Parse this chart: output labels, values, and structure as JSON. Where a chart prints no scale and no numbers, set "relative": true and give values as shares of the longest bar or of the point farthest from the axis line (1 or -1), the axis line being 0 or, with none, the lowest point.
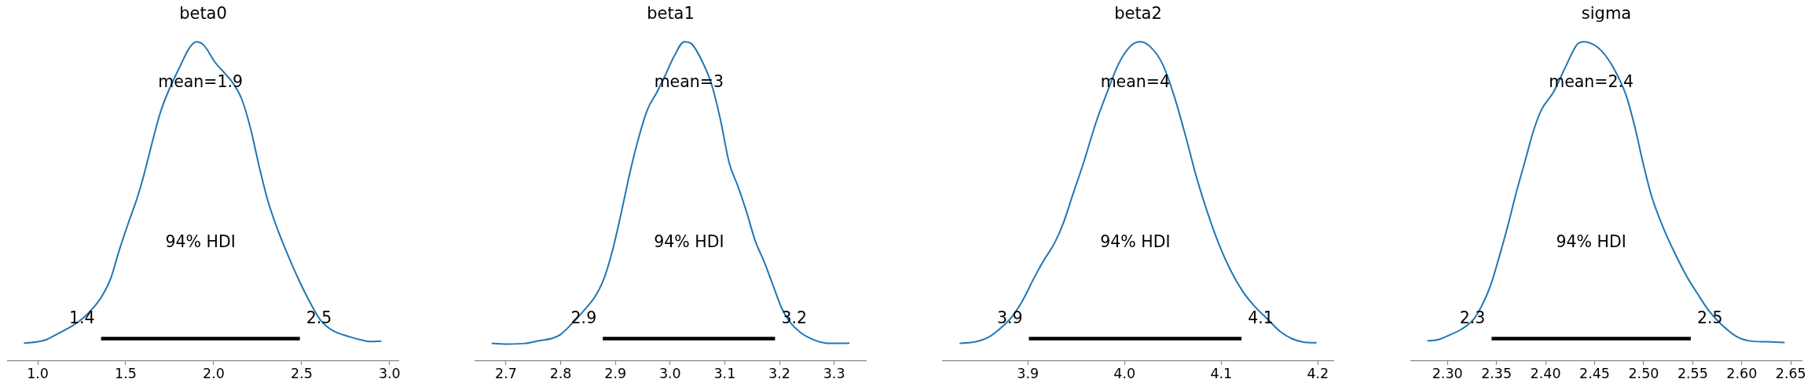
{
  "chart_data": [
    {
      "type": "line",
      "title": "beta0",
      "relative": true,
      "xlim": [
        0.83,
        3.05
      ],
      "xticks": [
        {
          "value": 1,
          "label": "1.0"
        },
        1.5,
        {
          "value": 2,
          "label": "2.0"
        },
        2.5,
        {
          "value": 3,
          "label": "3.0"
        }
      ],
      "series": [
        {
          "color": "#1f77b4",
          "x": [
            0.925,
            1.0,
            1.05,
            1.116,
            1.199,
            1.257,
            1.315,
            1.364,
            1.414,
            1.464,
            1.513,
            1.563,
            1.604,
            1.646,
            1.695,
            1.745,
            1.811,
            1.861,
            1.902,
            1.944,
            2.01,
            2.06,
            2.109,
            2.159,
            2.209,
            2.258,
            2.308,
            2.358,
            2.424,
            2.49,
            2.556,
            2.606,
            2.672,
            2.772,
            2.854,
            2.887,
            2.95
          ],
          "values": [
            0.056,
            0.06,
            0.067,
            0.086,
            0.111,
            0.134,
            0.166,
            0.202,
            0.257,
            0.348,
            0.429,
            0.507,
            0.584,
            0.675,
            0.775,
            0.848,
            0.925,
            0.98,
            1.0,
            0.989,
            0.934,
            0.903,
            0.871,
            0.821,
            0.73,
            0.611,
            0.502,
            0.42,
            0.329,
            0.247,
            0.175,
            0.129,
            0.097,
            0.076,
            0.064,
            0.061,
            0.062
          ]
        },
        {
          "color": "#000000",
          "x": [
            1.36,
            2.49
          ],
          "values": [
            0.07,
            0.07
          ]
        }
      ],
      "annotations": [
        "mean=1.9",
        "94% HDI",
        "1.4",
        "2.5"
      ]
    },
    {
      "type": "line",
      "title": "beta1",
      "relative": true,
      "xlim": [
        2.644,
        3.358
      ],
      "xticks": [
        2.7,
        2.8,
        2.9,
        {
          "value": 3,
          "label": "3.0"
        },
        3.1,
        3.2,
        3.3
      ],
      "series": [
        {
          "color": "#1f77b4",
          "x": [
            2.675,
            2.703,
            2.735,
            2.762,
            2.783,
            2.799,
            2.82,
            2.842,
            2.863,
            2.879,
            2.895,
            2.911,
            2.927,
            2.943,
            2.959,
            2.975,
            2.991,
            3.007,
            3.026,
            3.039,
            3.06,
            3.076,
            3.092,
            3.108,
            3.124,
            3.14,
            3.156,
            3.172,
            3.188,
            3.204,
            3.22,
            3.241,
            3.263,
            3.284,
            3.3,
            3.327
          ],
          "values": [
            0.055,
            0.053,
            0.055,
            0.064,
            0.07,
            0.082,
            0.116,
            0.157,
            0.202,
            0.257,
            0.348,
            0.466,
            0.593,
            0.702,
            0.789,
            0.839,
            0.894,
            0.953,
            1.0,
            0.994,
            0.934,
            0.866,
            0.757,
            0.621,
            0.548,
            0.466,
            0.375,
            0.311,
            0.238,
            0.166,
            0.12,
            0.086,
            0.066,
            0.056,
            0.055,
            0.056
          ]
        },
        {
          "color": "#000000",
          "x": [
            2.877,
            3.192
          ],
          "values": [
            0.07,
            0.07
          ]
        }
      ],
      "annotations": [
        "mean=3",
        "94% HDI",
        "2.9",
        "3.2"
      ]
    },
    {
      "type": "line",
      "title": "beta2",
      "relative": true,
      "xlim": [
        3.812,
        4.216
      ],
      "xticks": [
        3.9,
        {
          "value": 4,
          "label": "4.0"
        },
        4.1,
        4.2
      ],
      "series": [
        {
          "color": "#1f77b4",
          "x": [
            3.83,
            3.847,
            3.859,
            3.871,
            3.883,
            3.895,
            3.907,
            3.916,
            3.928,
            3.937,
            3.946,
            3.958,
            3.97,
            3.982,
            3.994,
            4.006,
            4.016,
            4.026,
            4.039,
            4.051,
            4.063,
            4.074,
            4.086,
            4.098,
            4.11,
            4.122,
            4.134,
            4.149,
            4.161,
            4.173,
            4.185,
            4.198
          ],
          "values": [
            0.055,
            0.061,
            0.074,
            0.101,
            0.137,
            0.192,
            0.264,
            0.313,
            0.372,
            0.435,
            0.517,
            0.625,
            0.743,
            0.842,
            0.932,
            0.986,
            1.0,
            0.986,
            0.932,
            0.833,
            0.706,
            0.58,
            0.463,
            0.363,
            0.282,
            0.219,
            0.173,
            0.128,
            0.092,
            0.07,
            0.059,
            0.057
          ]
        },
        {
          "color": "#000000",
          "x": [
            3.901,
            4.121
          ],
          "values": [
            0.07,
            0.07
          ]
        }
      ],
      "annotations": [
        "mean=4",
        "94% HDI",
        "3.9",
        "4.1"
      ]
    },
    {
      "type": "line",
      "title": "sigma",
      "relative": true,
      "xlim": [
        2.263,
        2.661
      ],
      "xticks": [
        {
          "value": 2.3,
          "label": "2.30"
        },
        2.35,
        {
          "value": 2.4,
          "label": "2.40"
        },
        2.45,
        {
          "value": 2.5,
          "label": "2.50"
        },
        2.55,
        {
          "value": 2.6,
          "label": "2.60"
        },
        2.65
      ],
      "series": [
        {
          "color": "#1f77b4",
          "x": [
            2.28,
            2.291,
            2.302,
            2.314,
            2.326,
            2.335,
            2.344,
            2.352,
            2.361,
            2.37,
            2.379,
            2.388,
            2.396,
            2.408,
            2.42,
            2.432,
            2.439,
            2.449,
            2.458,
            2.47,
            2.482,
            2.491,
            2.499,
            2.508,
            2.52,
            2.532,
            2.544,
            2.555,
            2.567,
            2.579,
            2.594,
            2.608,
            2.626,
            2.643
          ],
          "values": [
            0.063,
            0.067,
            0.081,
            0.099,
            0.128,
            0.173,
            0.237,
            0.318,
            0.417,
            0.526,
            0.625,
            0.724,
            0.788,
            0.842,
            0.919,
            0.991,
            1.0,
            0.991,
            0.968,
            0.914,
            0.833,
            0.733,
            0.625,
            0.517,
            0.417,
            0.336,
            0.264,
            0.21,
            0.155,
            0.115,
            0.078,
            0.063,
            0.06,
            0.058
          ]
        },
        {
          "color": "#000000",
          "x": [
            2.345,
            2.548
          ],
          "values": [
            0.07,
            0.07
          ]
        }
      ],
      "annotations": [
        "mean=2.4",
        "94% HDI",
        "2.3",
        "2.5"
      ]
    }
  ]
}
